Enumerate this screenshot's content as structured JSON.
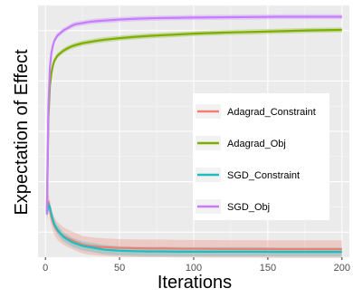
{
  "chart_data": {
    "type": "line",
    "title": "",
    "xlabel": "Iterations",
    "ylabel": "Expectation of Effect",
    "xlim": [
      -5,
      205
    ],
    "ylim": [
      0,
      1
    ],
    "x_ticks": [
      0,
      50,
      100,
      150,
      200
    ],
    "x_tick_labels": [
      "0",
      "50",
      "100",
      "150",
      "200"
    ],
    "y_tick_labels": [],
    "grid": true,
    "background_color": "#ebebeb",
    "legend_position": "right",
    "x": [
      1,
      2,
      3,
      4,
      5,
      6,
      8,
      10,
      12,
      15,
      18,
      20,
      25,
      30,
      35,
      40,
      50,
      60,
      70,
      80,
      90,
      100,
      120,
      140,
      160,
      180,
      200
    ],
    "series": [
      {
        "name": "Adagrad_Constraint",
        "color": "#f07e72",
        "values": [
          0.18,
          0.22,
          0.19,
          0.16,
          0.14,
          0.125,
          0.105,
          0.095,
          0.085,
          0.075,
          0.068,
          0.062,
          0.05,
          0.045,
          0.042,
          0.04,
          0.037,
          0.036,
          0.035,
          0.035,
          0.034,
          0.034,
          0.033,
          0.033,
          0.032,
          0.032,
          0.032
        ],
        "band": 0.035
      },
      {
        "name": "Adagrad_Obj",
        "color": "#7cae00",
        "values": [
          0.18,
          0.55,
          0.68,
          0.73,
          0.76,
          0.78,
          0.8,
          0.81,
          0.82,
          0.83,
          0.838,
          0.842,
          0.85,
          0.855,
          0.86,
          0.864,
          0.87,
          0.875,
          0.879,
          0.882,
          0.885,
          0.888,
          0.892,
          0.895,
          0.898,
          0.901,
          0.903
        ],
        "band": 0.01
      },
      {
        "name": "SGD_Constraint",
        "color": "#1ebdc1",
        "values": [
          0.17,
          0.21,
          0.2,
          0.17,
          0.15,
          0.13,
          0.11,
          0.095,
          0.082,
          0.07,
          0.06,
          0.055,
          0.045,
          0.04,
          0.035,
          0.03,
          0.026,
          0.024,
          0.023,
          0.023,
          0.022,
          0.022,
          0.022,
          0.022,
          0.021,
          0.021,
          0.021
        ],
        "band": 0.018
      },
      {
        "name": "SGD_Obj",
        "color": "#c77cff",
        "values": [
          0.17,
          0.6,
          0.75,
          0.81,
          0.84,
          0.86,
          0.88,
          0.89,
          0.9,
          0.91,
          0.92,
          0.925,
          0.93,
          0.935,
          0.938,
          0.94,
          0.944,
          0.947,
          0.949,
          0.95,
          0.951,
          0.952,
          0.953,
          0.954,
          0.955,
          0.955,
          0.955
        ],
        "band": 0.01
      }
    ]
  }
}
